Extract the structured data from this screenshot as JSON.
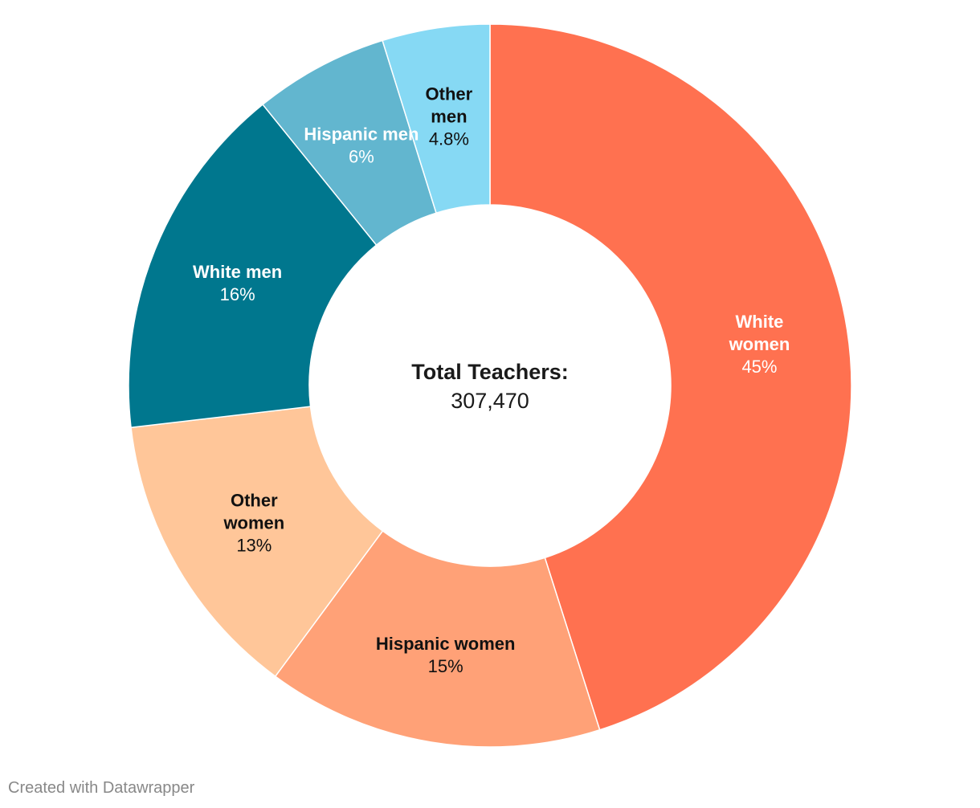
{
  "chart_data": {
    "type": "pie",
    "donut": true,
    "center": {
      "title": "Total Teachers:",
      "value": "307,470"
    },
    "slices": [
      {
        "name": "White women",
        "label_lines": [
          "White",
          "women"
        ],
        "value": 45,
        "display": "45%",
        "color": "#ff7150",
        "text_color": "#ffffff"
      },
      {
        "name": "Hispanic women",
        "label_lines": [
          "Hispanic women"
        ],
        "value": 15,
        "display": "15%",
        "color": "#ffa177",
        "text_color": "#111111"
      },
      {
        "name": "Other women",
        "label_lines": [
          "Other",
          "women"
        ],
        "value": 13,
        "display": "13%",
        "color": "#ffc699",
        "text_color": "#111111"
      },
      {
        "name": "White men",
        "label_lines": [
          "White men"
        ],
        "value": 16,
        "display": "16%",
        "color": "#00778e",
        "text_color": "#ffffff"
      },
      {
        "name": "Hispanic men",
        "label_lines": [
          "Hispanic men"
        ],
        "value": 6,
        "display": "6%",
        "color": "#62b6cf",
        "text_color": "#ffffff"
      },
      {
        "name": "Other men",
        "label_lines": [
          "Other",
          "men"
        ],
        "value": 4.8,
        "display": "4.8%",
        "color": "#86d9f4",
        "text_color": "#111111"
      }
    ]
  },
  "footer": {
    "credit": "Created with Datawrapper"
  }
}
